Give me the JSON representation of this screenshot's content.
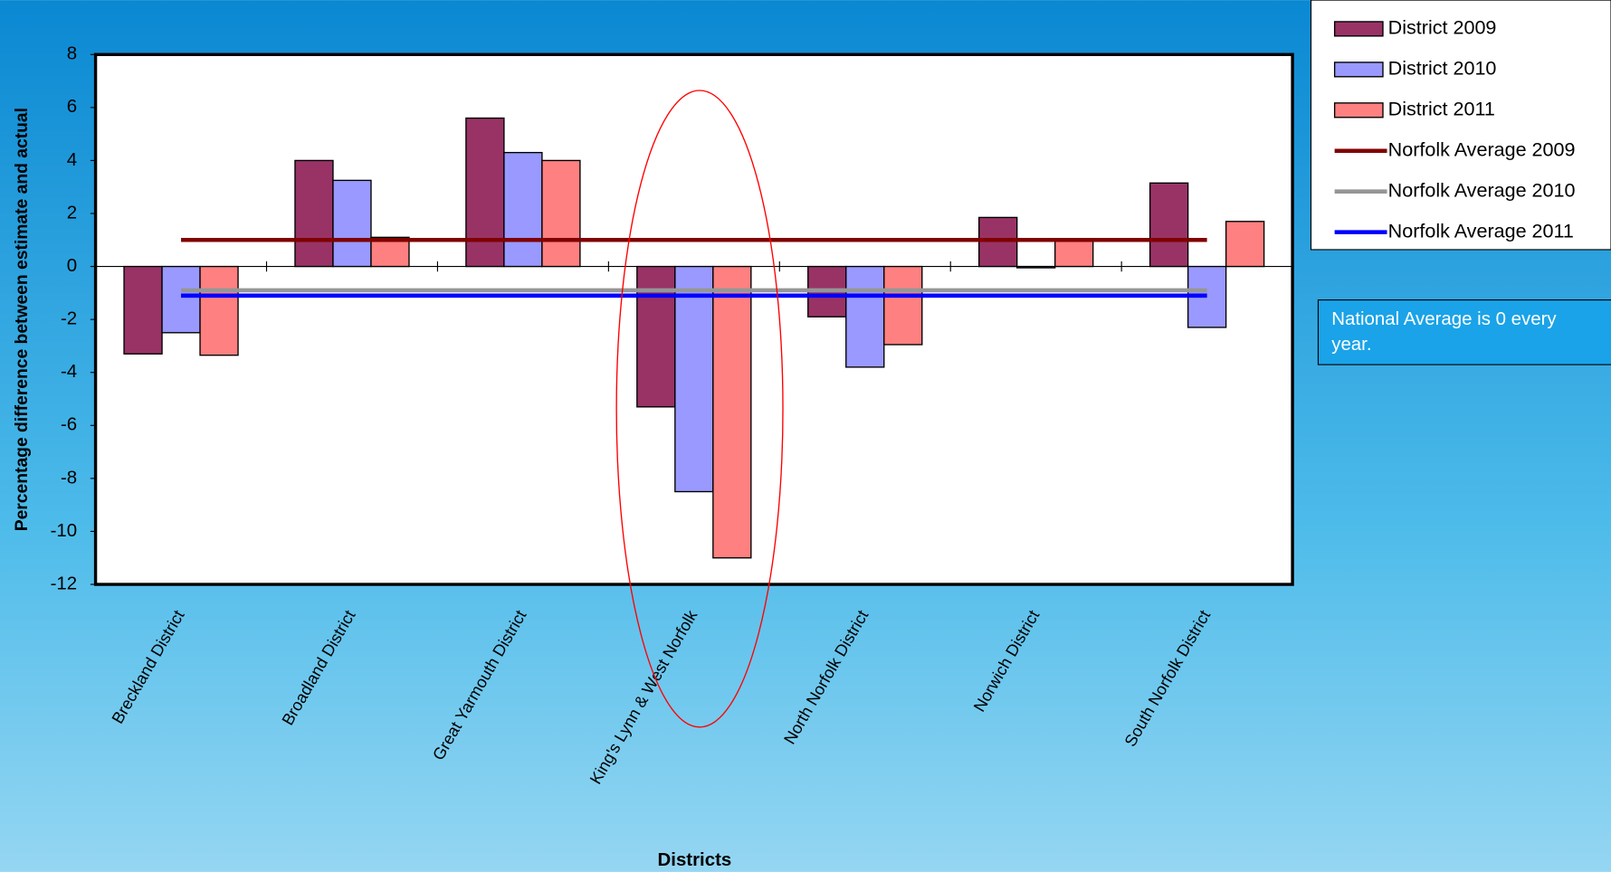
{
  "chart_data": {
    "type": "bar",
    "y_label": "Percentage difference between estimate and actual",
    "x_label": "Districts",
    "categories": [
      "Breckland District",
      "Broadland District",
      "Great Yarmouth District",
      "King's Lynn & West Norfolk",
      "North Norfolk District",
      "Norwich District",
      "South Norfolk District"
    ],
    "series": [
      {
        "name": "District 2009",
        "kind": "bar",
        "color": "#993366",
        "values": [
          -3.3,
          4.0,
          5.6,
          -5.3,
          -1.9,
          1.85,
          3.15
        ]
      },
      {
        "name": "District 2010",
        "kind": "bar",
        "color": "#9999ff",
        "values": [
          -2.5,
          3.25,
          4.3,
          -8.5,
          -3.8,
          -0.05,
          -2.3
        ]
      },
      {
        "name": "District 2011",
        "kind": "bar",
        "color": "#ff8080",
        "values": [
          -3.35,
          1.1,
          4.0,
          -11.0,
          -2.95,
          1.0,
          1.7
        ]
      },
      {
        "name": "Norfolk Average 2009",
        "kind": "line",
        "color": "#800000",
        "values": [
          1.0,
          1.0,
          1.0,
          1.0,
          1.0,
          1.0,
          1.0
        ]
      },
      {
        "name": "Norfolk Average 2010",
        "kind": "line",
        "color": "#969696",
        "values": [
          -0.9,
          -0.9,
          -0.9,
          -0.9,
          -0.9,
          -0.9,
          -0.9
        ]
      },
      {
        "name": "Norfolk Average 2011",
        "kind": "line",
        "color": "#0000ff",
        "values": [
          -1.1,
          -1.1,
          -1.1,
          -1.1,
          -1.1,
          -1.1,
          -1.1
        ]
      }
    ],
    "ylim": [
      -12,
      8
    ],
    "yticks": [
      -12,
      -10,
      -8,
      -6,
      -4,
      -2,
      0,
      2,
      4,
      6,
      8
    ],
    "grid": false,
    "legend": "right",
    "note": "National Average is 0 every year."
  }
}
